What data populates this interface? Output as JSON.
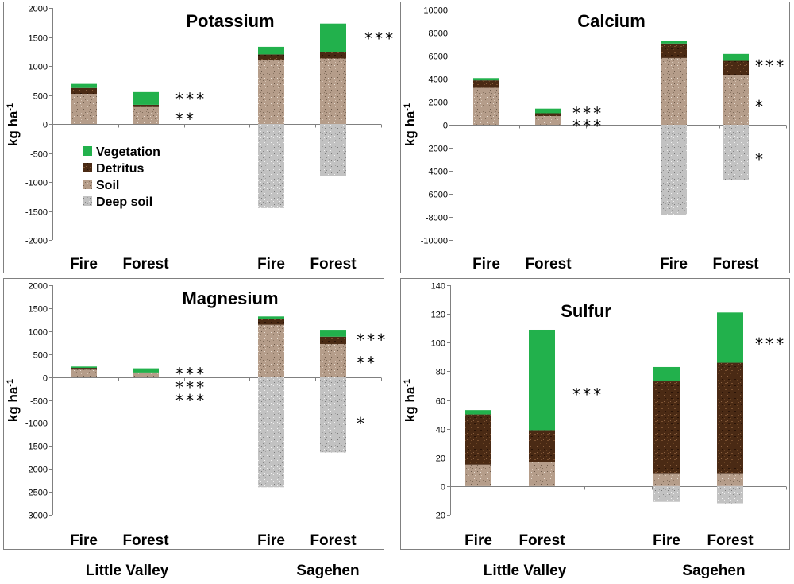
{
  "legend": {
    "labels": [
      "Vegetation",
      "Detritus",
      "Soil",
      "Deep soil"
    ]
  },
  "site_labels": [
    "Little Valley",
    "Sagehen"
  ],
  "y_unit": "kg ha",
  "y_unit_sup": "-1",
  "colors": {
    "vegetation": "#22b14c",
    "detritus": "#4a2a14",
    "soil": "#b59d8a",
    "deep_soil": "#bfbfbf",
    "frame": "#808080"
  },
  "chart_data": [
    {
      "type": "bar",
      "stacked": true,
      "title": "Potassium",
      "ylabel": "kg ha-1",
      "ylim": [
        -2000,
        2000
      ],
      "yticks": [
        -2000,
        -1500,
        -1000,
        -500,
        0,
        500,
        1000,
        1500,
        2000
      ],
      "categories": [
        "Fire",
        "Forest",
        "Fire",
        "Forest"
      ],
      "groups": [
        "Little Valley",
        "Little Valley",
        "Sagehen",
        "Sagehen"
      ],
      "series": [
        {
          "name": "Soil",
          "values": [
            520,
            290,
            1100,
            1130
          ]
        },
        {
          "name": "Detritus",
          "values": [
            100,
            40,
            100,
            110
          ]
        },
        {
          "name": "Vegetation",
          "values": [
            70,
            220,
            130,
            490
          ]
        },
        {
          "name": "Deep soil",
          "values": [
            0,
            0,
            -1450,
            -900
          ]
        }
      ],
      "annotations": [
        {
          "category_index": 1,
          "value": 430,
          "text": "***"
        },
        {
          "category_index": 1,
          "value": 80,
          "text": "**"
        },
        {
          "category_index": 3,
          "value": 1470,
          "text": "***"
        }
      ]
    },
    {
      "type": "bar",
      "stacked": true,
      "title": "Calcium",
      "ylabel": "kg ha-1",
      "ylim": [
        -10000,
        10000
      ],
      "yticks": [
        -10000,
        -8000,
        -6000,
        -4000,
        -2000,
        0,
        2000,
        4000,
        6000,
        8000,
        10000
      ],
      "categories": [
        "Fire",
        "Forest",
        "Fire",
        "Forest"
      ],
      "groups": [
        "Little Valley",
        "Little Valley",
        "Sagehen",
        "Sagehen"
      ],
      "series": [
        {
          "name": "Soil",
          "values": [
            3200,
            750,
            5800,
            4300
          ]
        },
        {
          "name": "Detritus",
          "values": [
            650,
            250,
            1250,
            1250
          ]
        },
        {
          "name": "Vegetation",
          "values": [
            200,
            400,
            250,
            600
          ]
        },
        {
          "name": "Deep soil",
          "values": [
            0,
            0,
            -7800,
            -4800
          ]
        }
      ],
      "annotations": [
        {
          "category_index": 1,
          "value": 1000,
          "text": "***"
        },
        {
          "category_index": 1,
          "value": -100,
          "text": "***"
        },
        {
          "category_index": 3,
          "value": 5100,
          "text": "***"
        },
        {
          "category_index": 3,
          "value": 1600,
          "text": "*"
        },
        {
          "category_index": 3,
          "value": -3000,
          "text": "*"
        }
      ]
    },
    {
      "type": "bar",
      "stacked": true,
      "title": "Magnesium",
      "ylabel": "kg ha-1",
      "ylim": [
        -3000,
        2000
      ],
      "yticks": [
        -3000,
        -2500,
        -2000,
        -1500,
        -1000,
        -500,
        0,
        500,
        1000,
        1500,
        2000
      ],
      "categories": [
        "Fire",
        "Forest",
        "Fire",
        "Forest"
      ],
      "groups": [
        "Little Valley",
        "Little Valley",
        "Sagehen",
        "Sagehen"
      ],
      "series": [
        {
          "name": "Soil",
          "values": [
            160,
            80,
            1140,
            720
          ]
        },
        {
          "name": "Detritus",
          "values": [
            40,
            20,
            130,
            160
          ]
        },
        {
          "name": "Vegetation",
          "values": [
            30,
            90,
            50,
            150
          ]
        },
        {
          "name": "Deep soil",
          "values": [
            0,
            0,
            -2400,
            -1640
          ]
        }
      ],
      "annotations": [
        {
          "category_index": 1,
          "value": 70,
          "text": "***"
        },
        {
          "category_index": 1,
          "value": -220,
          "text": "***"
        },
        {
          "category_index": 1,
          "value": -510,
          "text": "***"
        },
        {
          "category_index": 3,
          "value": 810,
          "text": "***"
        },
        {
          "category_index": 3,
          "value": 310,
          "text": "**"
        },
        {
          "category_index": 3,
          "value": -1010,
          "text": "*"
        }
      ]
    },
    {
      "type": "bar",
      "stacked": true,
      "title": "Sulfur",
      "ylabel": "kg ha-1",
      "ylim": [
        -20,
        140
      ],
      "yticks": [
        -20,
        0,
        20,
        40,
        60,
        80,
        100,
        120,
        140
      ],
      "categories": [
        "Fire",
        "Forest",
        "Fire",
        "Forest"
      ],
      "groups": [
        "Little Valley",
        "Little Valley",
        "Sagehen",
        "Sagehen"
      ],
      "series": [
        {
          "name": "Soil",
          "values": [
            15,
            17,
            9,
            9
          ]
        },
        {
          "name": "Detritus",
          "values": [
            35,
            22,
            64,
            77
          ]
        },
        {
          "name": "Vegetation",
          "values": [
            3,
            70,
            10,
            35
          ]
        },
        {
          "name": "Deep soil",
          "values": [
            0,
            0,
            -11,
            -12
          ]
        }
      ],
      "annotations": [
        {
          "category_index": 1,
          "value": 64,
          "text": "***"
        },
        {
          "category_index": 3,
          "value": 99,
          "text": "***"
        }
      ]
    }
  ]
}
